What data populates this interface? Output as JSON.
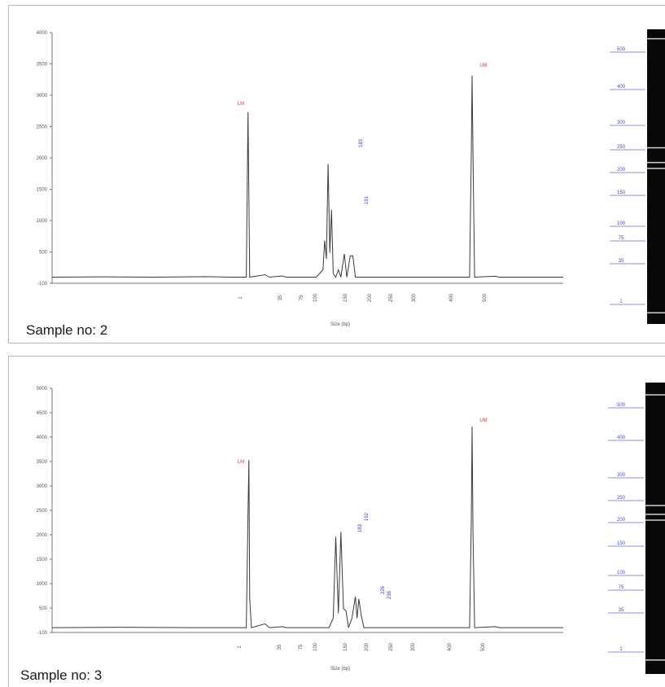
{
  "panels": [
    {
      "sample_label": "Sample no: 2",
      "x_axis_label": "Size (bp)",
      "gel_ladder_labels": [
        "500",
        "400",
        "300",
        "250",
        "200",
        "150",
        "100",
        "75",
        "35",
        "1"
      ],
      "chart_data": {
        "type": "line",
        "y_ticks": [
          "4000",
          "3500",
          "3000",
          "2500",
          "2000",
          "1500",
          "1000",
          "500",
          "-100"
        ],
        "ylim": [
          -100,
          4000
        ],
        "x_ticks": [
          "1",
          "35",
          "75",
          "100",
          "150",
          "200",
          "250",
          "300",
          "400",
          "500"
        ],
        "peak_labels_red": [
          "LM",
          "UM"
        ],
        "peak_labels_blue": [
          "183",
          "191"
        ],
        "series": [
          {
            "values": [
              [
                0,
                0
              ],
              [
                60,
                5
              ],
              [
                120,
                0
              ],
              [
                180,
                8
              ],
              [
                210,
                0
              ],
              [
                228,
                0
              ],
              [
                230,
                2700
              ],
              [
                232,
                0
              ],
              [
                250,
                40
              ],
              [
                255,
                0
              ],
              [
                270,
                20
              ],
              [
                275,
                0
              ],
              [
                310,
                0
              ],
              [
                318,
                120
              ],
              [
                320,
                600
              ],
              [
                322,
                300
              ],
              [
                324,
                1850
              ],
              [
                326,
                400
              ],
              [
                328,
                1100
              ],
              [
                330,
                60
              ],
              [
                333,
                0
              ],
              [
                336,
                120
              ],
              [
                339,
                0
              ],
              [
                343,
                380
              ],
              [
                346,
                0
              ],
              [
                350,
                350
              ],
              [
                353,
                350
              ],
              [
                356,
                0
              ],
              [
                400,
                0
              ],
              [
                490,
                0
              ],
              [
                492,
                2000
              ],
              [
                493,
                3300
              ],
              [
                494,
                2000
              ],
              [
                496,
                0
              ],
              [
                520,
                15
              ],
              [
                525,
                0
              ],
              [
                600,
                0
              ]
            ]
          }
        ]
      }
    },
    {
      "sample_label": "Sample no: 3",
      "x_axis_label": "Size (bp)",
      "gel_ladder_labels": [
        "500",
        "400",
        "300",
        "250",
        "200",
        "150",
        "100",
        "75",
        "35",
        "1"
      ],
      "chart_data": {
        "type": "line",
        "y_ticks": [
          "5000",
          "4500",
          "4000",
          "3500",
          "3000",
          "2500",
          "2000",
          "1500",
          "1000",
          "500",
          "-100"
        ],
        "ylim": [
          -100,
          5000
        ],
        "x_ticks": [
          "1",
          "35",
          "75",
          "100",
          "150",
          "200",
          "250",
          "300",
          "400",
          "500"
        ],
        "peak_labels_red": [
          "LM",
          "UM"
        ],
        "peak_labels_blue": [
          "183",
          "192",
          "226",
          "235"
        ],
        "series": [
          {
            "values": [
              [
                0,
                0
              ],
              [
                80,
                8
              ],
              [
                170,
                0
              ],
              [
                228,
                0
              ],
              [
                230,
                2400
              ],
              [
                231,
                3500
              ],
              [
                232,
                600
              ],
              [
                234,
                0
              ],
              [
                250,
                80
              ],
              [
                255,
                0
              ],
              [
                270,
                20
              ],
              [
                275,
                0
              ],
              [
                325,
                0
              ],
              [
                330,
                200
              ],
              [
                333,
                1900
              ],
              [
                336,
                300
              ],
              [
                339,
                2000
              ],
              [
                342,
                400
              ],
              [
                345,
                350
              ],
              [
                348,
                0
              ],
              [
                352,
                200
              ],
              [
                356,
                650
              ],
              [
                358,
                200
              ],
              [
                360,
                600
              ],
              [
                363,
                250
              ],
              [
                366,
                0
              ],
              [
                420,
                0
              ],
              [
                490,
                0
              ],
              [
                492,
                2200
              ],
              [
                493,
                4200
              ],
              [
                494,
                2000
              ],
              [
                496,
                0
              ],
              [
                520,
                20
              ],
              [
                525,
                0
              ],
              [
                600,
                0
              ]
            ]
          }
        ]
      }
    }
  ]
}
